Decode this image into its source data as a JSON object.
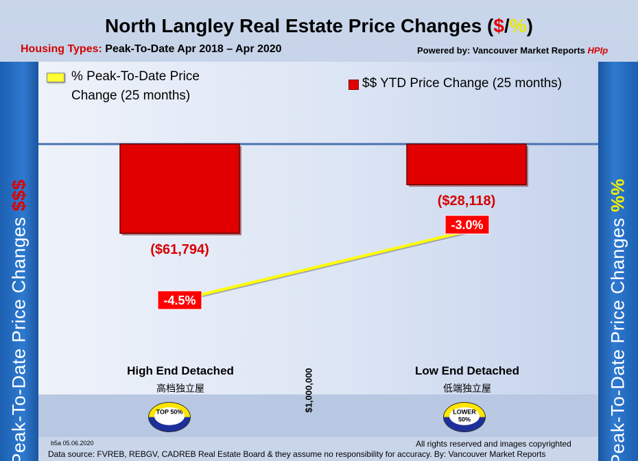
{
  "title": {
    "main": "North Langley Real Estate Price Changes (",
    "dollar": "$",
    "slash": "/",
    "pct": "%",
    "close": ")"
  },
  "subtitle": {
    "housing_label": "Housing Types:",
    "period": "Peak-To-Date Apr 2018 – Apr 2020",
    "powered_by": "Powered by: Vancouver Market Reports ",
    "hpi": "HPIp"
  },
  "side_left": {
    "text": "Peak-To-Date Price Changes ",
    "accent": "$$$"
  },
  "side_right": {
    "text": "Peak-To-Date  Price  Changes ",
    "accent": "%%"
  },
  "legend": {
    "line": "% Peak-To-Date Price Change (25 months)",
    "bar": "$$ YTD Price Change (25 months)"
  },
  "divider_label": "$1,000,000",
  "badges": {
    "top": "TOP 50%",
    "lower": "LOWER 50%"
  },
  "footer": {
    "code": "b5a 05.06.2020",
    "rights": "All rights reserved and  images copyrighted",
    "source": "Data source: FVREB, REBGV, CADREB Real Estate Board & they assume no responsibility for accuracy. By: Vancouver Market Reports"
  },
  "colors": {
    "bar": "#e00000",
    "line": "#ffff00",
    "panel": "#2f7ad0",
    "label_bg": "#ff0000"
  },
  "chart_data": {
    "type": "bar",
    "categories": [
      "High End Detached",
      "Low End Detached"
    ],
    "categories_cn": [
      "高档独立屋",
      "低端独立屋"
    ],
    "series": [
      {
        "name": "$$ YTD Price Change (25 months)",
        "type": "bar",
        "values": [
          -61794,
          -28118
        ],
        "labels": [
          "($61,794)",
          "($28,118)"
        ]
      },
      {
        "name": "% Peak-To-Date Price Change (25 months)",
        "type": "line",
        "values": [
          -4.5,
          -3.0
        ],
        "labels": [
          "-4.5%",
          "-3.0%"
        ]
      }
    ]
  }
}
